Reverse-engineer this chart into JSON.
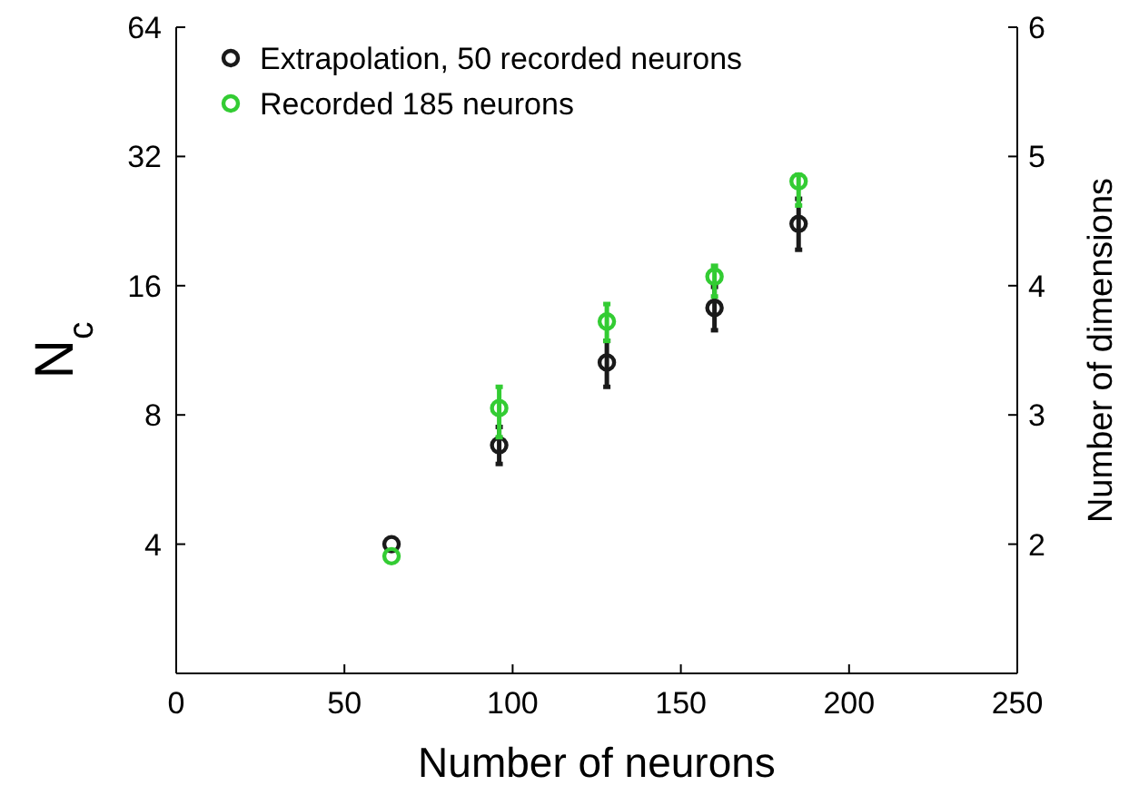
{
  "chart_data": {
    "type": "scatter",
    "xlabel": "Number of neurons",
    "ylabel": "N$_{c}$",
    "y2label": "Number of dimensions",
    "xlim": [
      0,
      250
    ],
    "xticks": [
      0,
      50,
      100,
      150,
      200,
      250
    ],
    "ylim": [
      2,
      64
    ],
    "yticks": [
      4,
      8,
      16,
      32,
      64
    ],
    "log": "y",
    "y2lim": [
      1,
      6
    ],
    "y2ticks": [
      2,
      3,
      4,
      5,
      6
    ],
    "legend": "top left",
    "marker": "circle",
    "grid": false,
    "series": [
      {
        "name": "Extrapolation, 50 recorded neurons",
        "color": "#1a1a1a",
        "x": [
          64,
          96,
          128,
          160,
          185
        ],
        "values": [
          4.0,
          6.8,
          10.6,
          14.2,
          22.3
        ],
        "errors": [
          null,
          [
            6.15,
            7.5
          ],
          [
            9.3,
            11.9
          ],
          [
            12.6,
            15.9
          ],
          [
            19.4,
            25.5
          ]
        ]
      },
      {
        "name": "Recorded 185 neurons",
        "color": "#33cc33",
        "x": [
          64,
          96,
          128,
          160,
          185
        ],
        "values": [
          3.75,
          8.3,
          13.2,
          16.8,
          28
        ],
        "errors": [
          null,
          [
            7.1,
            9.3
          ],
          [
            11.9,
            14.5
          ],
          [
            15.1,
            17.8
          ],
          [
            24.6,
            29
          ]
        ]
      }
    ]
  }
}
